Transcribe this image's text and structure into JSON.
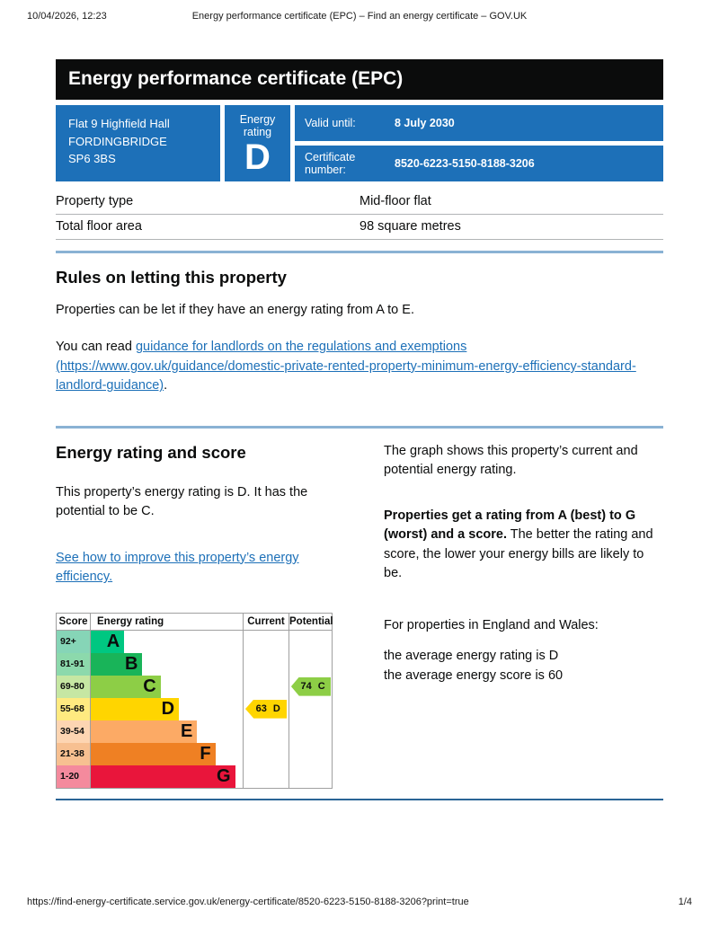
{
  "print_header": {
    "datetime": "10/04/2026, 12:23",
    "title": "Energy performance certificate (EPC) – Find an energy certificate – GOV.UK"
  },
  "banner": {
    "title": "Energy performance certificate (EPC)"
  },
  "summary": {
    "address_lines": [
      "Flat 9 Highfield Hall",
      "FORDINGBRIDGE",
      "SP6 3BS"
    ],
    "energy_rating_label": "Energy rating",
    "energy_rating": "D",
    "valid_until_label": "Valid until:",
    "valid_until_value": "8 July 2030",
    "certificate_number_label": "Certificate number:",
    "certificate_number_value": "8520-6223-5150-8188-3206"
  },
  "property_table": {
    "rows": [
      {
        "label": "Property type",
        "value": "Mid-floor flat"
      },
      {
        "label": "Total floor area",
        "value": "98 square metres"
      }
    ]
  },
  "letting_rules": {
    "heading": "Rules on letting this property",
    "paragraph1": "Properties can be let if they have an energy rating from A to E.",
    "paragraph2_prefix": "You can read ",
    "link_text": "guidance for landlords on the regulations and exemptions (https://www.gov.uk/guidance/domestic-private-rented-property-minimum-energy-efficiency-standard-landlord-guidance)",
    "paragraph2_suffix": "."
  },
  "rating_section": {
    "heading": "Energy rating and score",
    "paragraph1": "This property’s energy rating is D. It has the potential to be C.",
    "improve_link_text": "See how to improve this property’s energy efficiency.",
    "right_paragraph1": "The graph shows this property’s current and potential energy rating.",
    "right_bold": "Properties get a rating from A (best) to G (worst) and a score.",
    "right_after_bold": " The better the rating and score, the lower your energy bills are likely to be.",
    "right_paragraph3": "For properties in England and Wales:",
    "average_line1": "the average energy rating is D",
    "average_line2": "the average energy score is 60"
  },
  "chart_data": {
    "type": "bar",
    "title": "Energy rating and score graph",
    "columns": {
      "score": "Score",
      "rating": "Energy rating",
      "current": "Current",
      "potential": "Potential"
    },
    "bands": [
      {
        "score_range": "92+",
        "letter": "A",
        "color": "#00c781",
        "tint": "#86d5b7",
        "bar_pct": 22
      },
      {
        "score_range": "81-91",
        "letter": "B",
        "color": "#19b459",
        "tint": "#8cd9ac",
        "bar_pct": 34
      },
      {
        "score_range": "69-80",
        "letter": "C",
        "color": "#8dce46",
        "tint": "#c6e7a3",
        "bar_pct": 46
      },
      {
        "score_range": "55-68",
        "letter": "D",
        "color": "#ffd500",
        "tint": "#ffea80",
        "bar_pct": 58
      },
      {
        "score_range": "39-54",
        "letter": "E",
        "color": "#fcaa65",
        "tint": "#fdd5b2",
        "bar_pct": 70
      },
      {
        "score_range": "21-38",
        "letter": "F",
        "color": "#ef8023",
        "tint": "#f7c091",
        "bar_pct": 82
      },
      {
        "score_range": "1-20",
        "letter": "G",
        "color": "#e9153b",
        "tint": "#f48a9d",
        "bar_pct": 95
      }
    ],
    "current": {
      "score": 63,
      "letter": "D"
    },
    "potential": {
      "score": 74,
      "letter": "C"
    }
  },
  "print_footer": {
    "url": "https://find-energy-certificate.service.gov.uk/energy-certificate/8520-6223-5150-8188-3206?print=true",
    "page": "1/4"
  }
}
